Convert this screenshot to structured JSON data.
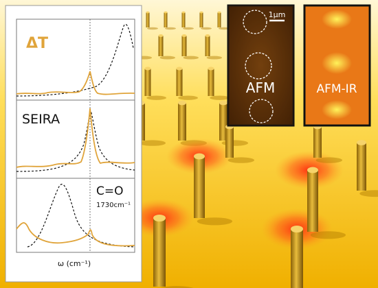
{
  "colors": {
    "gold": "#f2b705",
    "gold_light": "#ffd23a",
    "rod": "#c99a1f",
    "hotspot": "#ff2a10",
    "spectrum": "#e0a43a",
    "afm_bg": "#6b3a0a",
    "afmir_bg": "#f08a12",
    "panel_bg": "#ffffff"
  },
  "spectra": {
    "panels": [
      {
        "label": "ΔT",
        "label_color": "#e0a43a"
      },
      {
        "label": "SEIRA",
        "label_color": "#111111"
      },
      {
        "label": "C=O",
        "sublabel": "1730cm⁻¹",
        "label_color": "#111111"
      }
    ],
    "xlabel": "ω (cm⁻¹)"
  },
  "afm": {
    "label": "AFM",
    "scalebar": "1μm"
  },
  "afm_ir": {
    "label": "AFM-IR"
  }
}
